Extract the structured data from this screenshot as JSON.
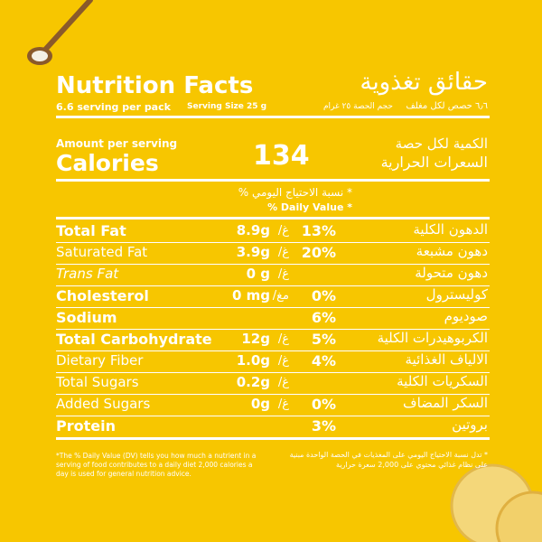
{
  "title_en": "Nutrition Facts",
  "title_ar": "حقائق تغذوية",
  "servings_en": "6.6 serving per pack",
  "serving_size_en": "Serving Size 25 g",
  "servings_ar": "٦٫٦ حصص لكل مغلف",
  "serving_size_ar": "حجم الحصة ٢٥ غرام",
  "amount_en": "Amount per serving",
  "calories_en": "Calories",
  "calories_value": "134",
  "amount_ar": "الكمية لكل حصة",
  "calories_ar": "السعرات الحرارية",
  "dv_header_ar": "* نسبة الاحتياج اليومي %",
  "dv_header_en": "% Daily Value *",
  "rows": [
    {
      "name_en": "Total Fat",
      "amount": "8.9g",
      "unit_ar": "غ/",
      "dv": "13%",
      "name_ar": "الدهون الكلية",
      "style": "bold"
    },
    {
      "name_en": "Saturated Fat",
      "amount": "3.9g",
      "unit_ar": "غ/",
      "dv": "20%",
      "name_ar": "دهون مشبعة",
      "style": "normal"
    },
    {
      "name_en": "Trans Fat",
      "amount": "0 g",
      "unit_ar": "غ/",
      "name_ar": "دهون متحولة",
      "style": "italic"
    },
    {
      "name_en": "Cholesterol",
      "amount": "0 mg",
      "unit_ar": "مغ/",
      "dv": "0%",
      "name_ar": "كوليسترول",
      "style": "bold"
    },
    {
      "name_en": "Sodium",
      "dv": "6%",
      "name_ar": "صوديوم",
      "style": "bold"
    },
    {
      "name_en": "Total Carbohydrate",
      "amount": "12g",
      "unit_ar": "غ/",
      "dv": "5%",
      "name_ar": "الكربوهيدرات الكلية",
      "style": "bold"
    },
    {
      "name_en": "Dietary Fiber",
      "amount": "1.0g",
      "unit_ar": "غ/",
      "dv": "4%",
      "name_ar": "الالياف الغذائية",
      "style": "normal"
    },
    {
      "name_en": "Total Sugars",
      "amount": "0.2g",
      "unit_ar": "غ/",
      "name_ar": "السكريات الكلية",
      "style": "normal"
    },
    {
      "name_en": "Added Sugars",
      "amount": "0g",
      "unit_ar": "غ/",
      "dv": "0%",
      "name_ar": "السكر المضاف",
      "style": "normal"
    },
    {
      "name_en": "Protein",
      "dv": "3%",
      "name_ar": "بروتين",
      "style": "bold"
    }
  ],
  "footnote_en": "*The % Daily Value (DV) tells you how much a nutrient in a serving of food contributes to a daily diet 2,000 calories a day is used for general nutrition advice.",
  "footnote_ar": "* تدل نسبة الاحتياج اليومي على المغذيات في الحصة الواحدة مبنية على نظام غذائي محتوي على 2,000 سعرة حرارية"
}
